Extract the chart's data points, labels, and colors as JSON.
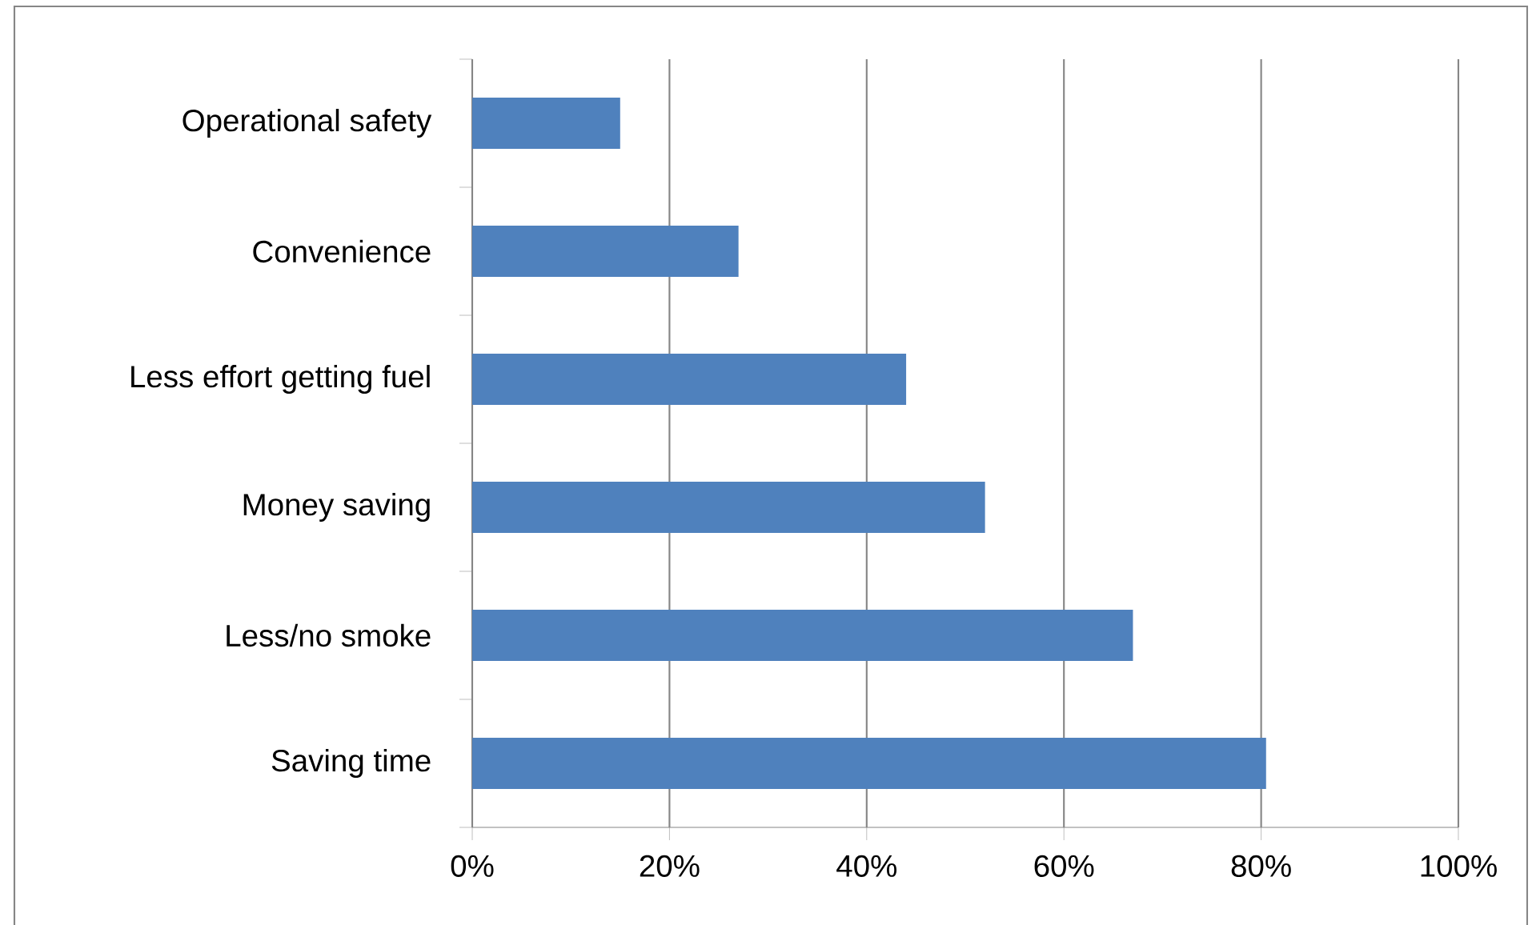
{
  "chart_data": {
    "type": "bar",
    "orientation": "horizontal",
    "categories": [
      "Operational safety",
      "Convenience",
      "Less effort getting fuel",
      "Money saving",
      "Less/no smoke",
      "Saving time"
    ],
    "values": [
      15,
      27,
      44,
      52,
      67,
      80.5
    ],
    "color": "#4f81bd",
    "xlim": [
      0,
      100
    ],
    "xticks": [
      {
        "value": 0,
        "label": "0%"
      },
      {
        "value": 20,
        "label": "20%"
      },
      {
        "value": 40,
        "label": "40%"
      },
      {
        "value": 60,
        "label": "60%"
      },
      {
        "value": 80,
        "label": "80%"
      },
      {
        "value": 100,
        "label": "100%"
      }
    ],
    "grid": "x"
  }
}
